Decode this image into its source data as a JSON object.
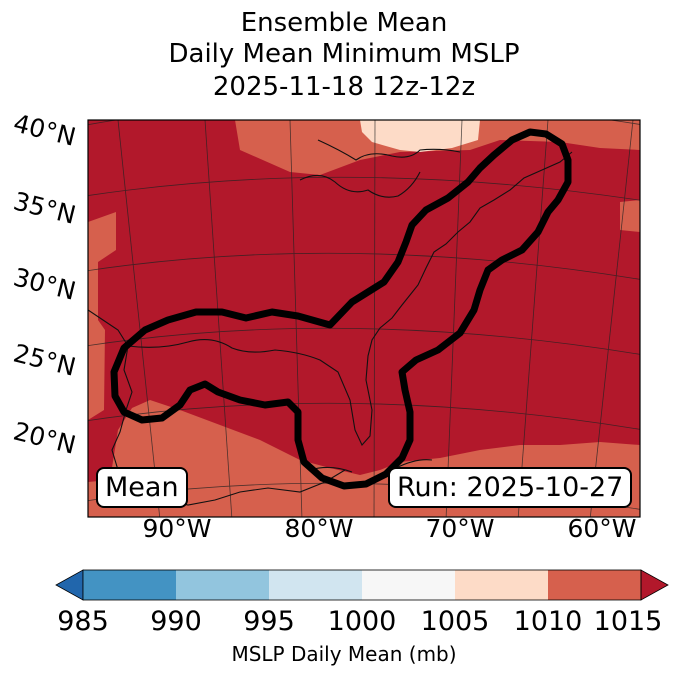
{
  "title": {
    "line1": "Ensemble Mean",
    "line2": "Daily Mean Minimum MSLP",
    "line3": "2025-11-18 12z-12z"
  },
  "latitude_labels": [
    "40°N",
    "35°N",
    "30°N",
    "25°N",
    "20°N"
  ],
  "longitude_labels": [
    "90°W",
    "80°W",
    "70°W",
    "60°W"
  ],
  "badges": {
    "mean": "Mean",
    "run": "Run: 2025-10-27"
  },
  "colorbar": {
    "ticks": [
      "985",
      "990",
      "995",
      "1000",
      "1005",
      "1010",
      "1015"
    ],
    "label": "MSLP Daily Mean (mb)",
    "colors": {
      "below": "#2166ac",
      "985-990": "#4393c3",
      "990-995": "#92c5de",
      "995-1000": "#d1e5f0",
      "1000-1005": "#f7f7f7",
      "1005-1010": "#fddbc7",
      "1010-1015": "#d6604d",
      "above": "#b2182b"
    }
  },
  "map_colors": {
    "high": "#b2182b",
    "mid": "#d6604d",
    "low": "#fddbc7",
    "outline": "#000000"
  }
}
